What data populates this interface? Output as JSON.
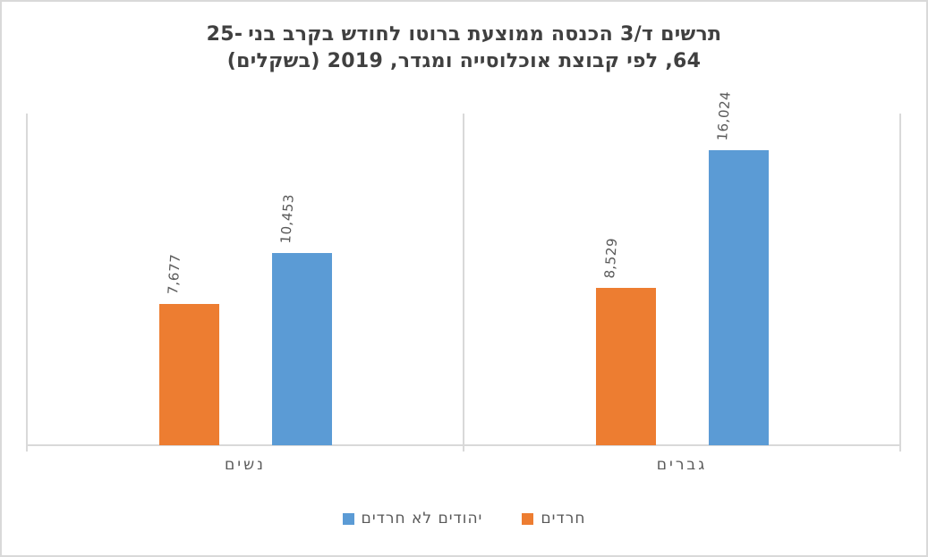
{
  "title": {
    "line1_main": "תרשים ד/3 הכנסה ממוצעת ברוטו לחודש בקרב בני",
    "line1_range": "25-",
    "line2": "64, לפי קבוצת אוכלוסייה ומגדר, 2019 (בשקלים)",
    "color": "#404040"
  },
  "legend": {
    "items": [
      {
        "label": "יהודים לא חרדים",
        "color": "#5B9BD5"
      },
      {
        "label": "חרדים",
        "color": "#ED7D31"
      }
    ]
  },
  "colors": {
    "axis_line": "#D9D9D9",
    "frame_border": "#D9D9D9",
    "label_text": "#595959",
    "title_text": "#404040",
    "background": "#FFFFFF"
  },
  "chart_data": {
    "type": "bar",
    "title": "תרשים ד/3 הכנסה ממוצעת ברוטו לחודש בקרב בני 25-64, לפי קבוצת אוכלוסייה ומגדר, 2019 (בשקלים)",
    "categories": [
      "נשים",
      "גברים"
    ],
    "series": [
      {
        "name": "חרדים",
        "color": "#ED7D31",
        "values": [
          7677,
          8529
        ],
        "labels": [
          "7,677",
          "8,529"
        ]
      },
      {
        "name": "יהודים לא חרדים",
        "color": "#5B9BD5",
        "values": [
          10453,
          16024
        ],
        "labels": [
          "10,453",
          "16,024"
        ]
      }
    ],
    "ylim": [
      0,
      18000
    ],
    "unit": "שקלים",
    "grid": false,
    "legend_position": "bottom",
    "data_label_rotation": -90,
    "rtl": true
  }
}
